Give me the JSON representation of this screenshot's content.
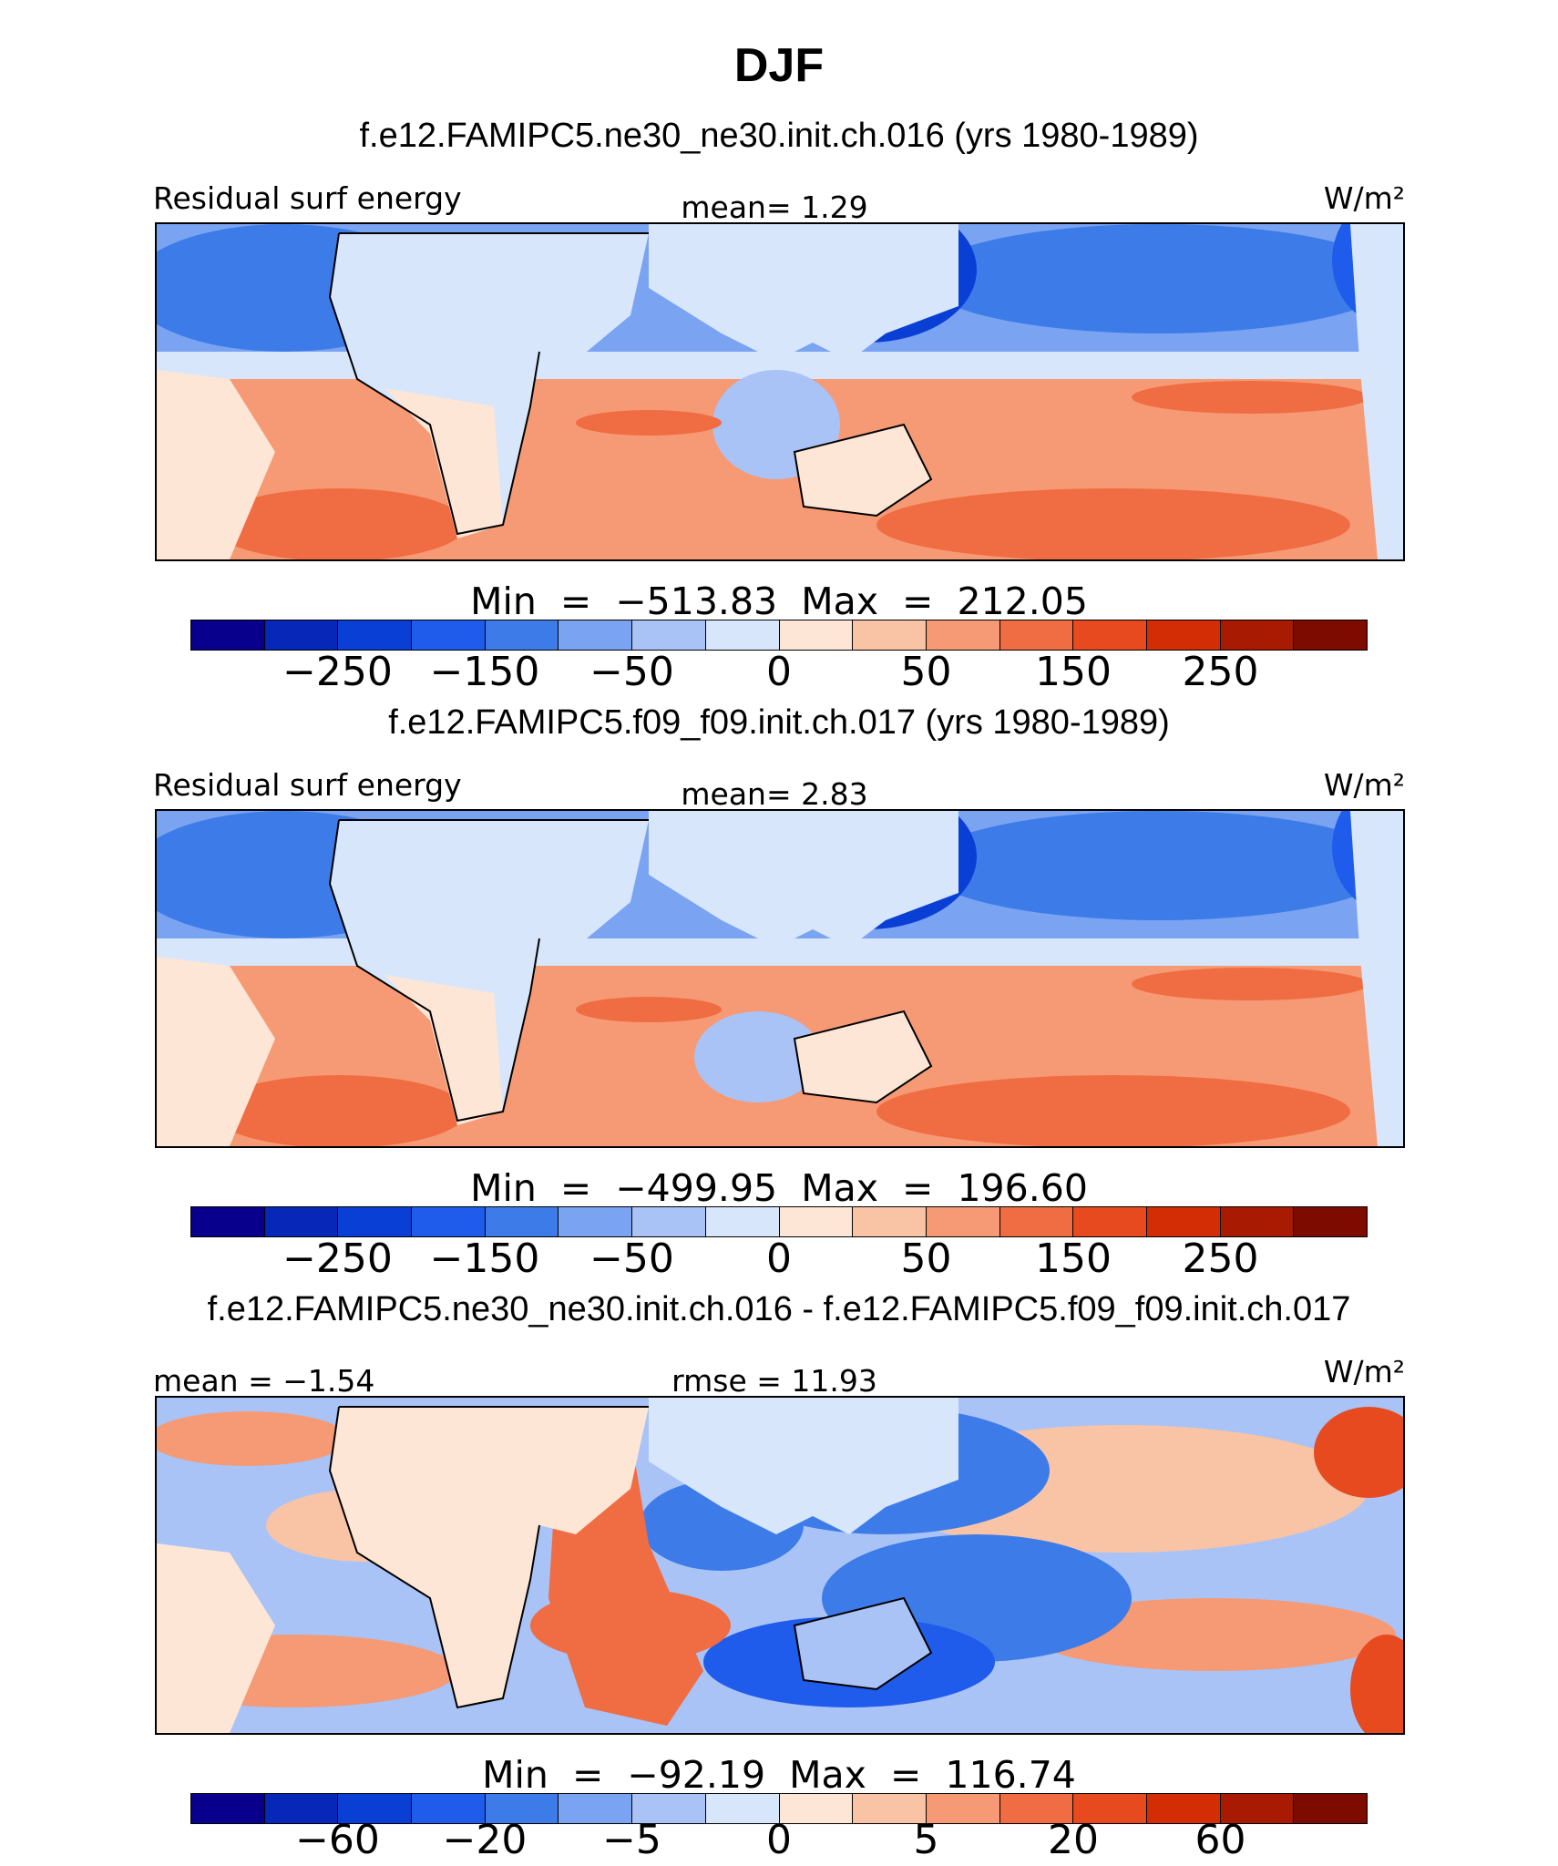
{
  "title": "DJF",
  "palette": [
    "#08008c",
    "#0627b8",
    "#0a3fd6",
    "#1f5cec",
    "#3d7ce8",
    "#7aa3f2",
    "#a9c3f6",
    "#d7e6fb",
    "#fde6d6",
    "#f9c3a6",
    "#f59a74",
    "#f06c43",
    "#e74a1f",
    "#d22d05",
    "#a81a02",
    "#7d0b00"
  ],
  "panels": [
    {
      "title": "f.e12.FAMIPC5.ne30_ne30.init.ch.016 (yrs 1980-1989)",
      "left_label": "Residual surf energy",
      "center_label": "mean=   1.29",
      "units": "W/m²",
      "minmax": "Min  =  −513.83  Max  =  212.05",
      "ticks": [
        "−250",
        "−150",
        "−50",
        "0",
        "50",
        "150",
        "250"
      ]
    },
    {
      "title": "f.e12.FAMIPC5.f09_f09.init.ch.017 (yrs 1980-1989)",
      "left_label": "Residual surf energy",
      "center_label": "mean=   2.83",
      "units": "W/m²",
      "minmax": "Min  =  −499.95  Max  =  196.60",
      "ticks": [
        "−250",
        "−150",
        "−50",
        "0",
        "50",
        "150",
        "250"
      ]
    },
    {
      "title": "f.e12.FAMIPC5.ne30_ne30.init.ch.016 - f.e12.FAMIPC5.f09_f09.init.ch.017",
      "left_label": "mean  =   −1.54",
      "center_label": "rmse  =   11.93",
      "units": "W/m²",
      "minmax": "Min  =  −92.19  Max  =  116.74",
      "ticks": [
        "−60",
        "−20",
        "−5",
        "0",
        "5",
        "20",
        "60"
      ]
    }
  ]
}
